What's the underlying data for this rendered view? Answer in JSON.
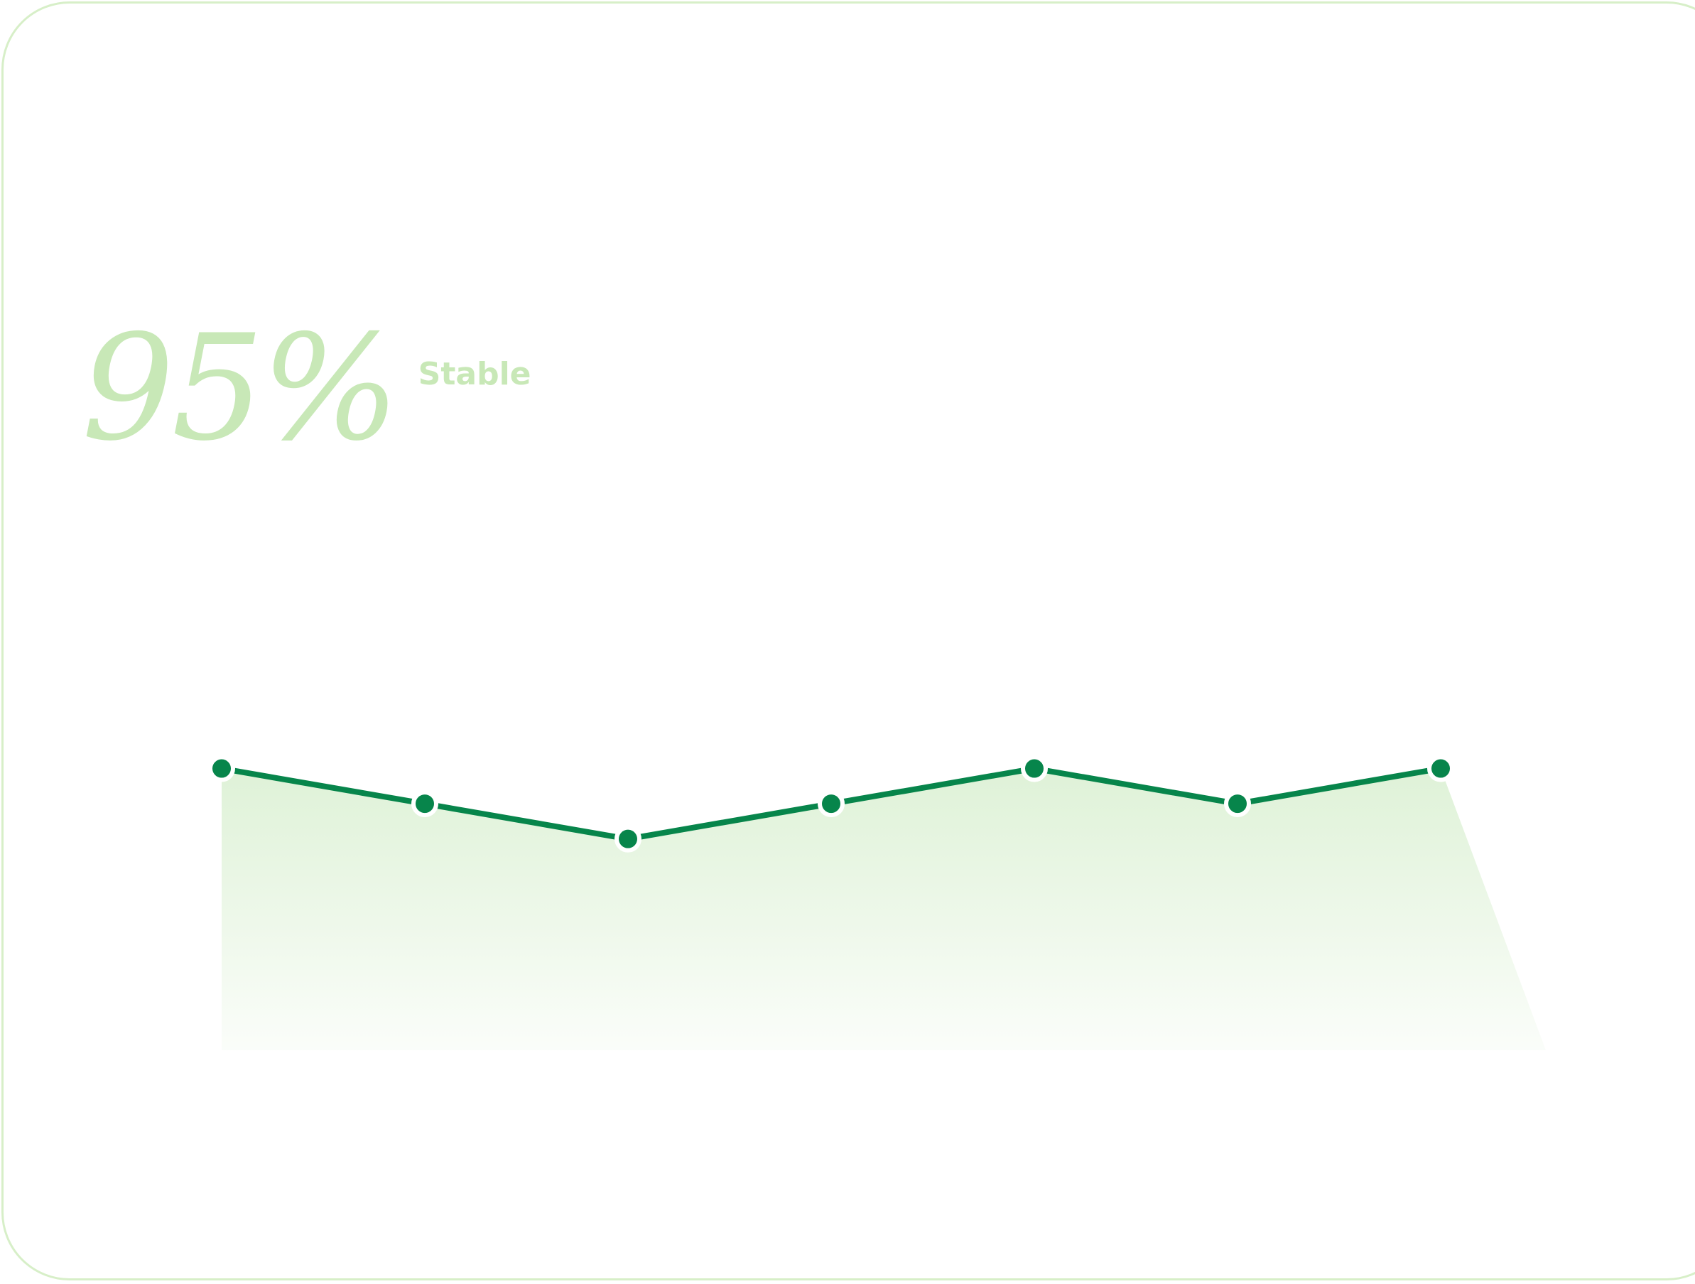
{
  "metric": {
    "value": "95%",
    "label": "Stable"
  },
  "colors": {
    "line": "#07854b",
    "fill": "#c9e9bd",
    "accent_text": "#c8e8b7",
    "card_border": "#d7efc8",
    "marker_outline": "#ffffff"
  },
  "chart_data": {
    "type": "area",
    "x": [
      1,
      2,
      3,
      4,
      5,
      6,
      7
    ],
    "values": [
      95,
      90,
      85,
      90,
      95,
      90,
      95
    ],
    "ylim": [
      55,
      100
    ],
    "grid": false,
    "legend": "none"
  }
}
